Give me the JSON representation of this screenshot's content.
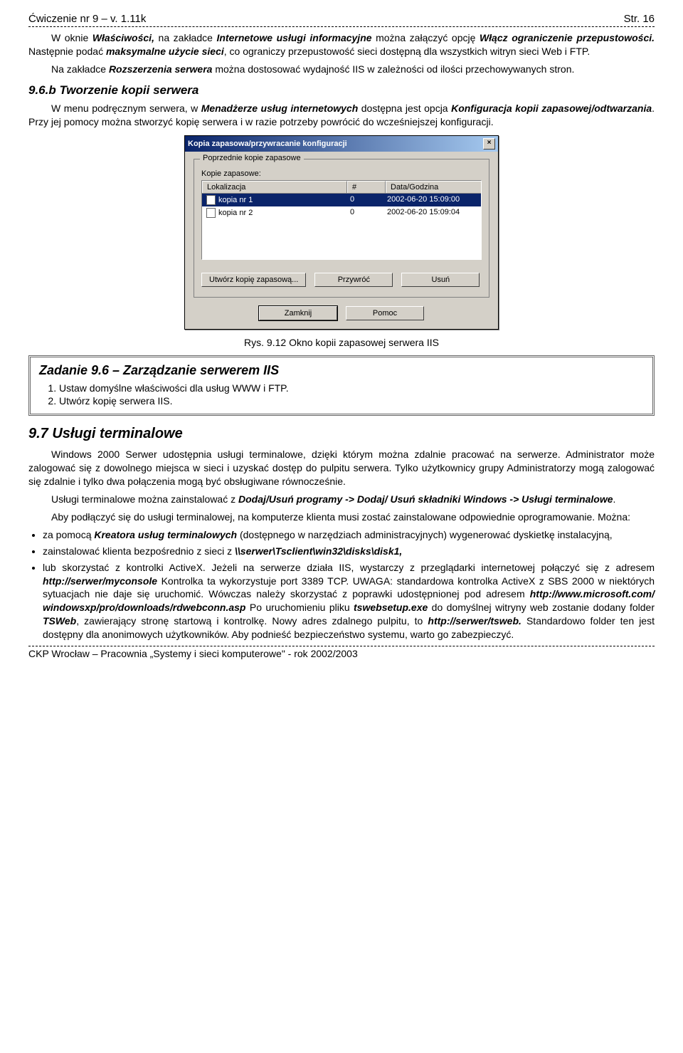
{
  "header": {
    "left": "Ćwiczenie nr 9 – v. 1.11k",
    "right": "Str. 16"
  },
  "p1_a": "W oknie ",
  "p1_b": "Właściwości,",
  "p1_c": " na zakładce ",
  "p1_d": "Internetowe usługi informacyjne",
  "p1_e": " można załączyć opcję ",
  "p1_f": "Włącz ograniczenie przepustowości.",
  "p1_g": " Następnie podać ",
  "p1_h": "maksymalne użycie sieci",
  "p1_i": ", co ograniczy przepustowość sieci dostępną dla wszystkich witryn sieci Web i FTP.",
  "p2_a": "Na zakładce ",
  "p2_b": "Rozszerzenia serwera",
  "p2_c": " można dostosować wydajność IIS w zależności od ilości przechowywanych stron.",
  "section96b": "9.6.b   Tworzenie kopii serwera",
  "p3_a": "W menu podręcznym serwera, w ",
  "p3_b": "Menadżerze usług internetowych",
  "p3_c": " dostępna jest opcja ",
  "p3_d": "Konfiguracja kopii zapasowej/odtwarzania",
  "p3_e": ". Przy jej pomocy można stworzyć kopię serwera i w razie potrzeby powrócić do wcześniejszej konfiguracji.",
  "dialog": {
    "title": "Kopia zapasowa/przywracanie konfiguracji",
    "group": "Poprzednie kopie zapasowe",
    "label_kopie": "Kopie zapasowe:",
    "col_loc": "Lokalizacja",
    "col_num": "#",
    "col_date": "Data/Godzina",
    "row1_name": "kopia nr 1",
    "row1_num": "0",
    "row1_date": "2002-06-20 15:09:00",
    "row2_name": "kopia nr 2",
    "row2_num": "0",
    "row2_date": "2002-06-20 15:09:04",
    "btn_create": "Utwórz kopię zapasową...",
    "btn_restore": "Przywróć",
    "btn_delete": "Usuń",
    "btn_close": "Zamknij",
    "btn_help": "Pomoc"
  },
  "caption": "Rys. 9.12 Okno kopii zapasowej serwera IIS",
  "task": {
    "title": "Zadanie 9.6 – Zarządzanie serwerem IIS",
    "item1": "Ustaw domyślne właściwości dla usług WWW i FTP.",
    "item2": "Utwórz kopię serwera IIS."
  },
  "section97": "9.7   Usługi terminalowe",
  "p4": "Windows 2000 Serwer udostępnia usługi terminalowe, dzięki którym można zdalnie pracować na serwerze. Administrator może zalogować się z dowolnego miejsca w sieci i uzyskać dostęp do pulpitu serwera. Tylko użytkownicy grupy Administratorzy mogą zalogować się zdalnie i tylko dwa połączenia mogą być obsługiwane równocześnie.",
  "p5_a": "Usługi terminalowe można zainstalować z ",
  "p5_b": "Dodaj/Usuń programy -> Dodaj/ Usuń składniki Windows -> Usługi terminalowe",
  "p5_c": ".",
  "p6": "Aby podłączyć się do usługi terminalowej, na komputerze klienta musi zostać zainstalowane odpowiednie oprogramowanie. Można:",
  "b1_a": "za pomocą ",
  "b1_b": "Kreatora usług terminalowych",
  "b1_c": " (dostępnego w narzędziach administracyjnych) wygenerować dyskietkę instalacyjną,",
  "b2_a": "zainstalować klienta bezpośrednio z sieci z ",
  "b2_b": "\\\\serwer\\Tsclient\\win32\\disks\\disk1,",
  "b3_a": "lub skorzystać z kontrolki ActiveX. Jeżeli na serwerze działa IIS, wystarczy z przeglądarki internetowej połączyć się z adresem ",
  "b3_b": "http://serwer/myconsole",
  "b3_c": " Kontrolka ta wykorzystuje port 3389 TCP. UWAGA: standardowa kontrolka ActiveX z SBS 2000 w niektórych sytuacjach nie daje się uruchomić. Wówczas należy skorzystać z poprawki udostępnionej pod adresem ",
  "b3_d": "http://www.microsoft.com/ windowsxp/pro/downloads/rdwebconn.asp",
  "b3_e": " Po uruchomieniu pliku ",
  "b3_f": "tswebsetup.exe",
  "b3_g": " do domyślnej witryny web zostanie dodany folder ",
  "b3_h": "TSWeb",
  "b3_i": ", zawierający stronę startową i kontrolkę. Nowy adres zdalnego pulpitu, to ",
  "b3_j": "http://serwer/tsweb.",
  "b3_k": " Standardowo folder ten jest dostępny dla anonimowych użytkowników. Aby podnieść bezpieczeństwo systemu, warto go zabezpieczyć.",
  "footer": "CKP Wrocław – Pracownia „Systemy i sieci komputerowe\" - rok 2002/2003"
}
